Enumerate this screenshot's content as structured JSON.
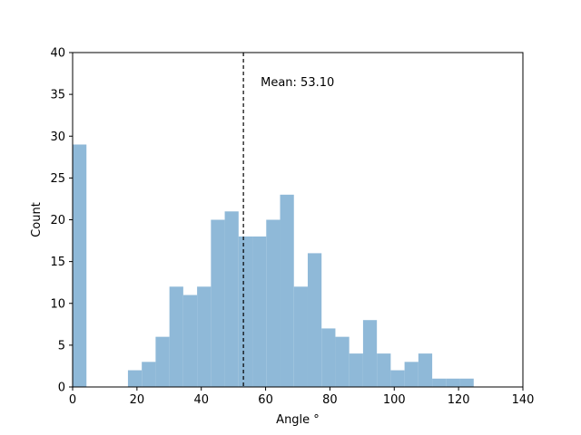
{
  "chart_data": {
    "type": "bar",
    "title": "",
    "xlabel": "Angle °",
    "ylabel": "Count",
    "xlim": [
      0,
      140
    ],
    "ylim": [
      0,
      40
    ],
    "xticks": [
      "0",
      "20",
      "40",
      "60",
      "80",
      "100",
      "120",
      "140"
    ],
    "yticks": [
      "0",
      "5",
      "10",
      "15",
      "20",
      "25",
      "30",
      "35",
      "40"
    ],
    "bin_width": 4.3,
    "bins_start": [
      0,
      17.2,
      21.5,
      25.8,
      30.1,
      34.4,
      38.7,
      43.0,
      47.3,
      51.6,
      55.9,
      60.2,
      64.5,
      68.8,
      73.1,
      77.4,
      81.7,
      86.0,
      90.3,
      94.6,
      98.9,
      103.2,
      107.5,
      111.8,
      116.1,
      120.4
    ],
    "values": [
      29,
      2,
      3,
      6,
      12,
      11,
      12,
      20,
      21,
      18,
      18,
      20,
      23,
      12,
      16,
      7,
      6,
      4,
      8,
      4,
      2,
      3,
      4,
      1,
      1,
      1
    ],
    "bar_color": "#8fb9d8",
    "mean": 53.1,
    "mean_label": "Mean: 53.10",
    "grid": false,
    "legend": "none"
  }
}
